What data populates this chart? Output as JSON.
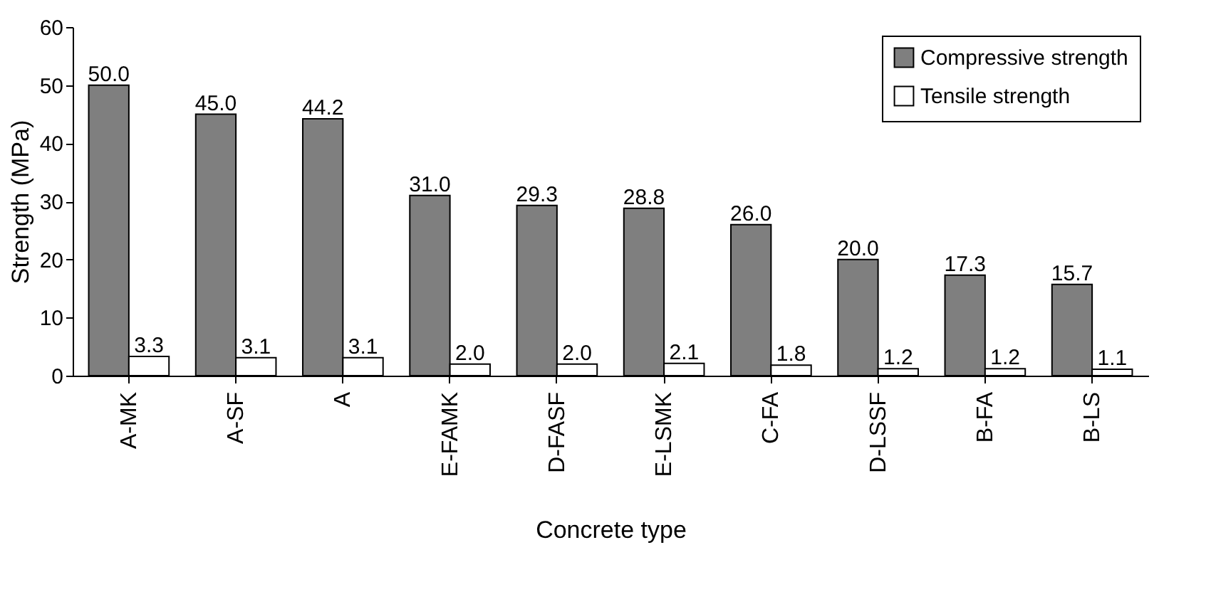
{
  "chart_data": {
    "type": "bar",
    "xlabel": "Concrete type",
    "ylabel": "Strength (MPa)",
    "categories": [
      "A-MK",
      "A-SF",
      "A",
      "E-FAMK",
      "D-FASF",
      "E-LSMK",
      "C-FA",
      "D-LSSF",
      "B-FA",
      "B-LS"
    ],
    "series": [
      {
        "name": "Compressive strength",
        "color": "#7f7f7f",
        "values": [
          50,
          45,
          44.2,
          31,
          29.3,
          28.8,
          26,
          20,
          17.3,
          15.7
        ],
        "value_labels": [
          "50.0",
          "45.0",
          "44.2",
          "31.0",
          "29.3",
          "28.8",
          "26.0",
          "20.0",
          "17.3",
          "15.7"
        ]
      },
      {
        "name": "Tensile strength",
        "color": "#ffffff",
        "values": [
          3.3,
          3.1,
          3.1,
          2,
          2,
          2.1,
          1.8,
          1.2,
          1.2,
          1.1
        ],
        "value_labels": [
          "3.3",
          "3.1",
          "3.1",
          "2.0",
          "2.0",
          "2.1",
          "1.8",
          "1.2",
          "1.2",
          "1.1"
        ]
      }
    ],
    "ylim": [
      0,
      60
    ],
    "yticks": [
      0,
      10,
      20,
      30,
      40,
      50,
      60
    ],
    "legend": "top right",
    "grid": false
  }
}
